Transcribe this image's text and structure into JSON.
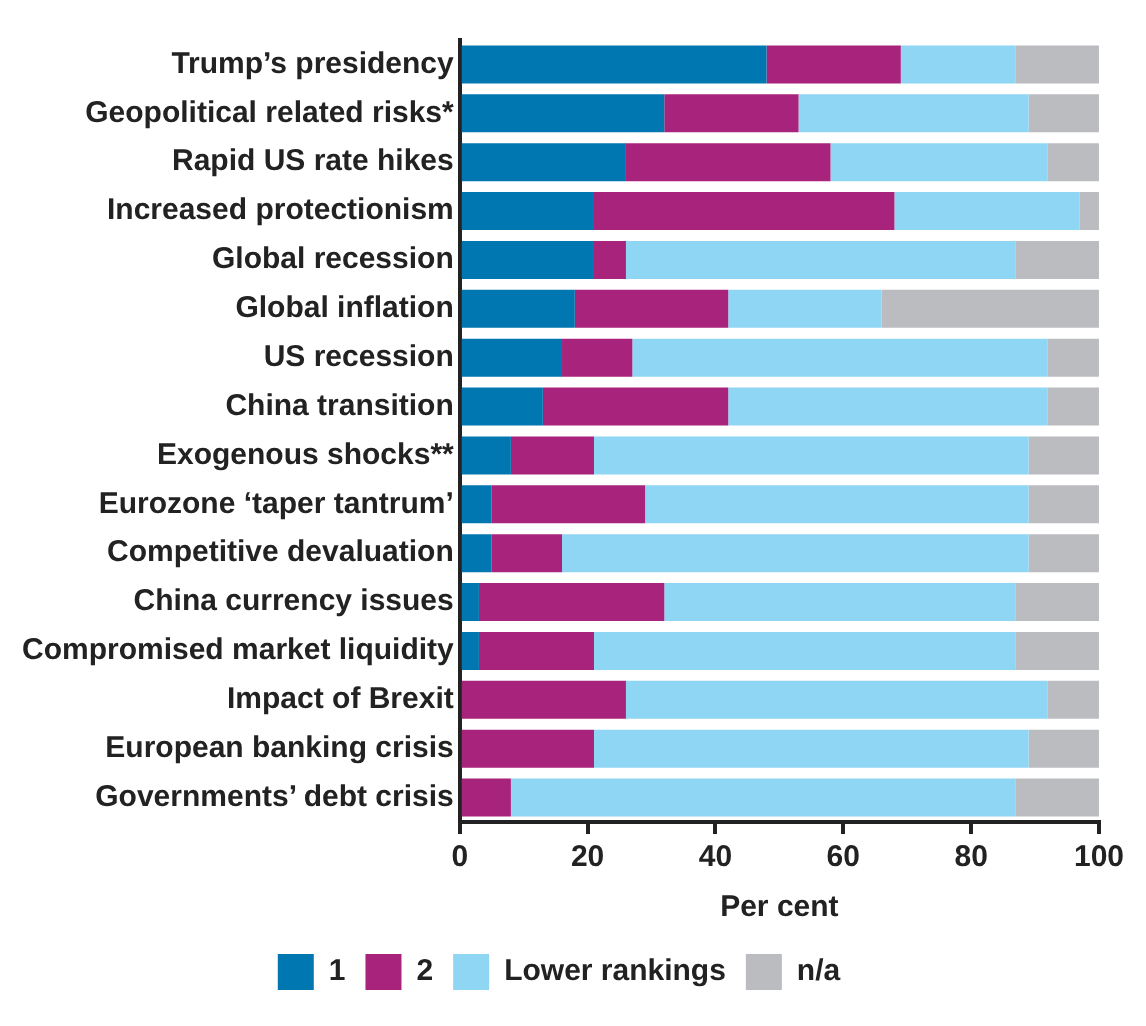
{
  "chart_data": {
    "type": "bar",
    "orientation": "horizontal",
    "stacked": true,
    "xlabel": "Per cent",
    "categories": [
      "Trump’s presidency",
      "Geopolitical related risks*",
      "Rapid US rate hikes",
      "Increased protectionism",
      "Global recession",
      "Global inflation",
      "US recession",
      "China transition",
      "Exogenous shocks**",
      "Eurozone ‘taper tantrum’",
      "Competitive devaluation",
      "China currency issues",
      "Compromised market liquidity",
      "Impact of Brexit",
      "European banking crisis",
      "Governments’ debt crisis"
    ],
    "series": [
      {
        "name": "1",
        "color": "#0077b0",
        "values": [
          48,
          32,
          26,
          21,
          21,
          18,
          16,
          13,
          8,
          5,
          5,
          3,
          3,
          0,
          0,
          0
        ]
      },
      {
        "name": "2",
        "color": "#a8237c",
        "values": [
          21,
          21,
          32,
          47,
          5,
          24,
          11,
          29,
          13,
          24,
          11,
          29,
          18,
          26,
          21,
          8
        ]
      },
      {
        "name": "Lower rankings",
        "color": "#8fd6f5",
        "values": [
          18,
          36,
          34,
          29,
          61,
          24,
          65,
          50,
          68,
          60,
          73,
          55,
          66,
          66,
          68,
          79
        ]
      },
      {
        "name": "n/a",
        "color": "#bbbcc0",
        "values": [
          13,
          11,
          8,
          3,
          13,
          34,
          8,
          8,
          11,
          11,
          11,
          13,
          13,
          8,
          11,
          13
        ]
      }
    ],
    "xlim": [
      0,
      100
    ],
    "xticks": [
      0,
      20,
      40,
      60,
      80,
      100
    ],
    "grid": false,
    "legend": "bottom"
  }
}
